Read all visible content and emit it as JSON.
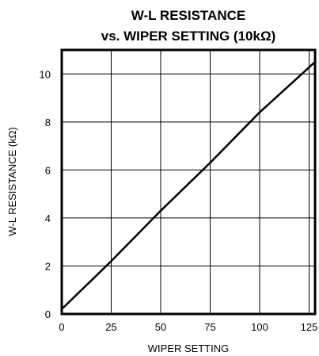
{
  "chart_data": {
    "type": "line",
    "title_line1": "W-L RESISTANCE",
    "title_line2": "vs. WIPER SETTING (10kΩ)",
    "xlabel": "WIPER SETTING",
    "ylabel": "W-L RESISTANCE (kΩ)",
    "xlim": [
      0,
      128
    ],
    "ylim": [
      0,
      11
    ],
    "x_ticks": [
      0,
      25,
      50,
      75,
      100,
      125
    ],
    "y_ticks": [
      0,
      2,
      4,
      6,
      8,
      10
    ],
    "grid": true,
    "series": [
      {
        "x": [
          0,
          25,
          50,
          75,
          100,
          128
        ],
        "y": [
          0.2,
          2.2,
          4.3,
          6.3,
          8.4,
          10.5
        ]
      }
    ],
    "colors": {
      "line": "#000000",
      "grid": "#000000",
      "frame": "#000000"
    }
  }
}
